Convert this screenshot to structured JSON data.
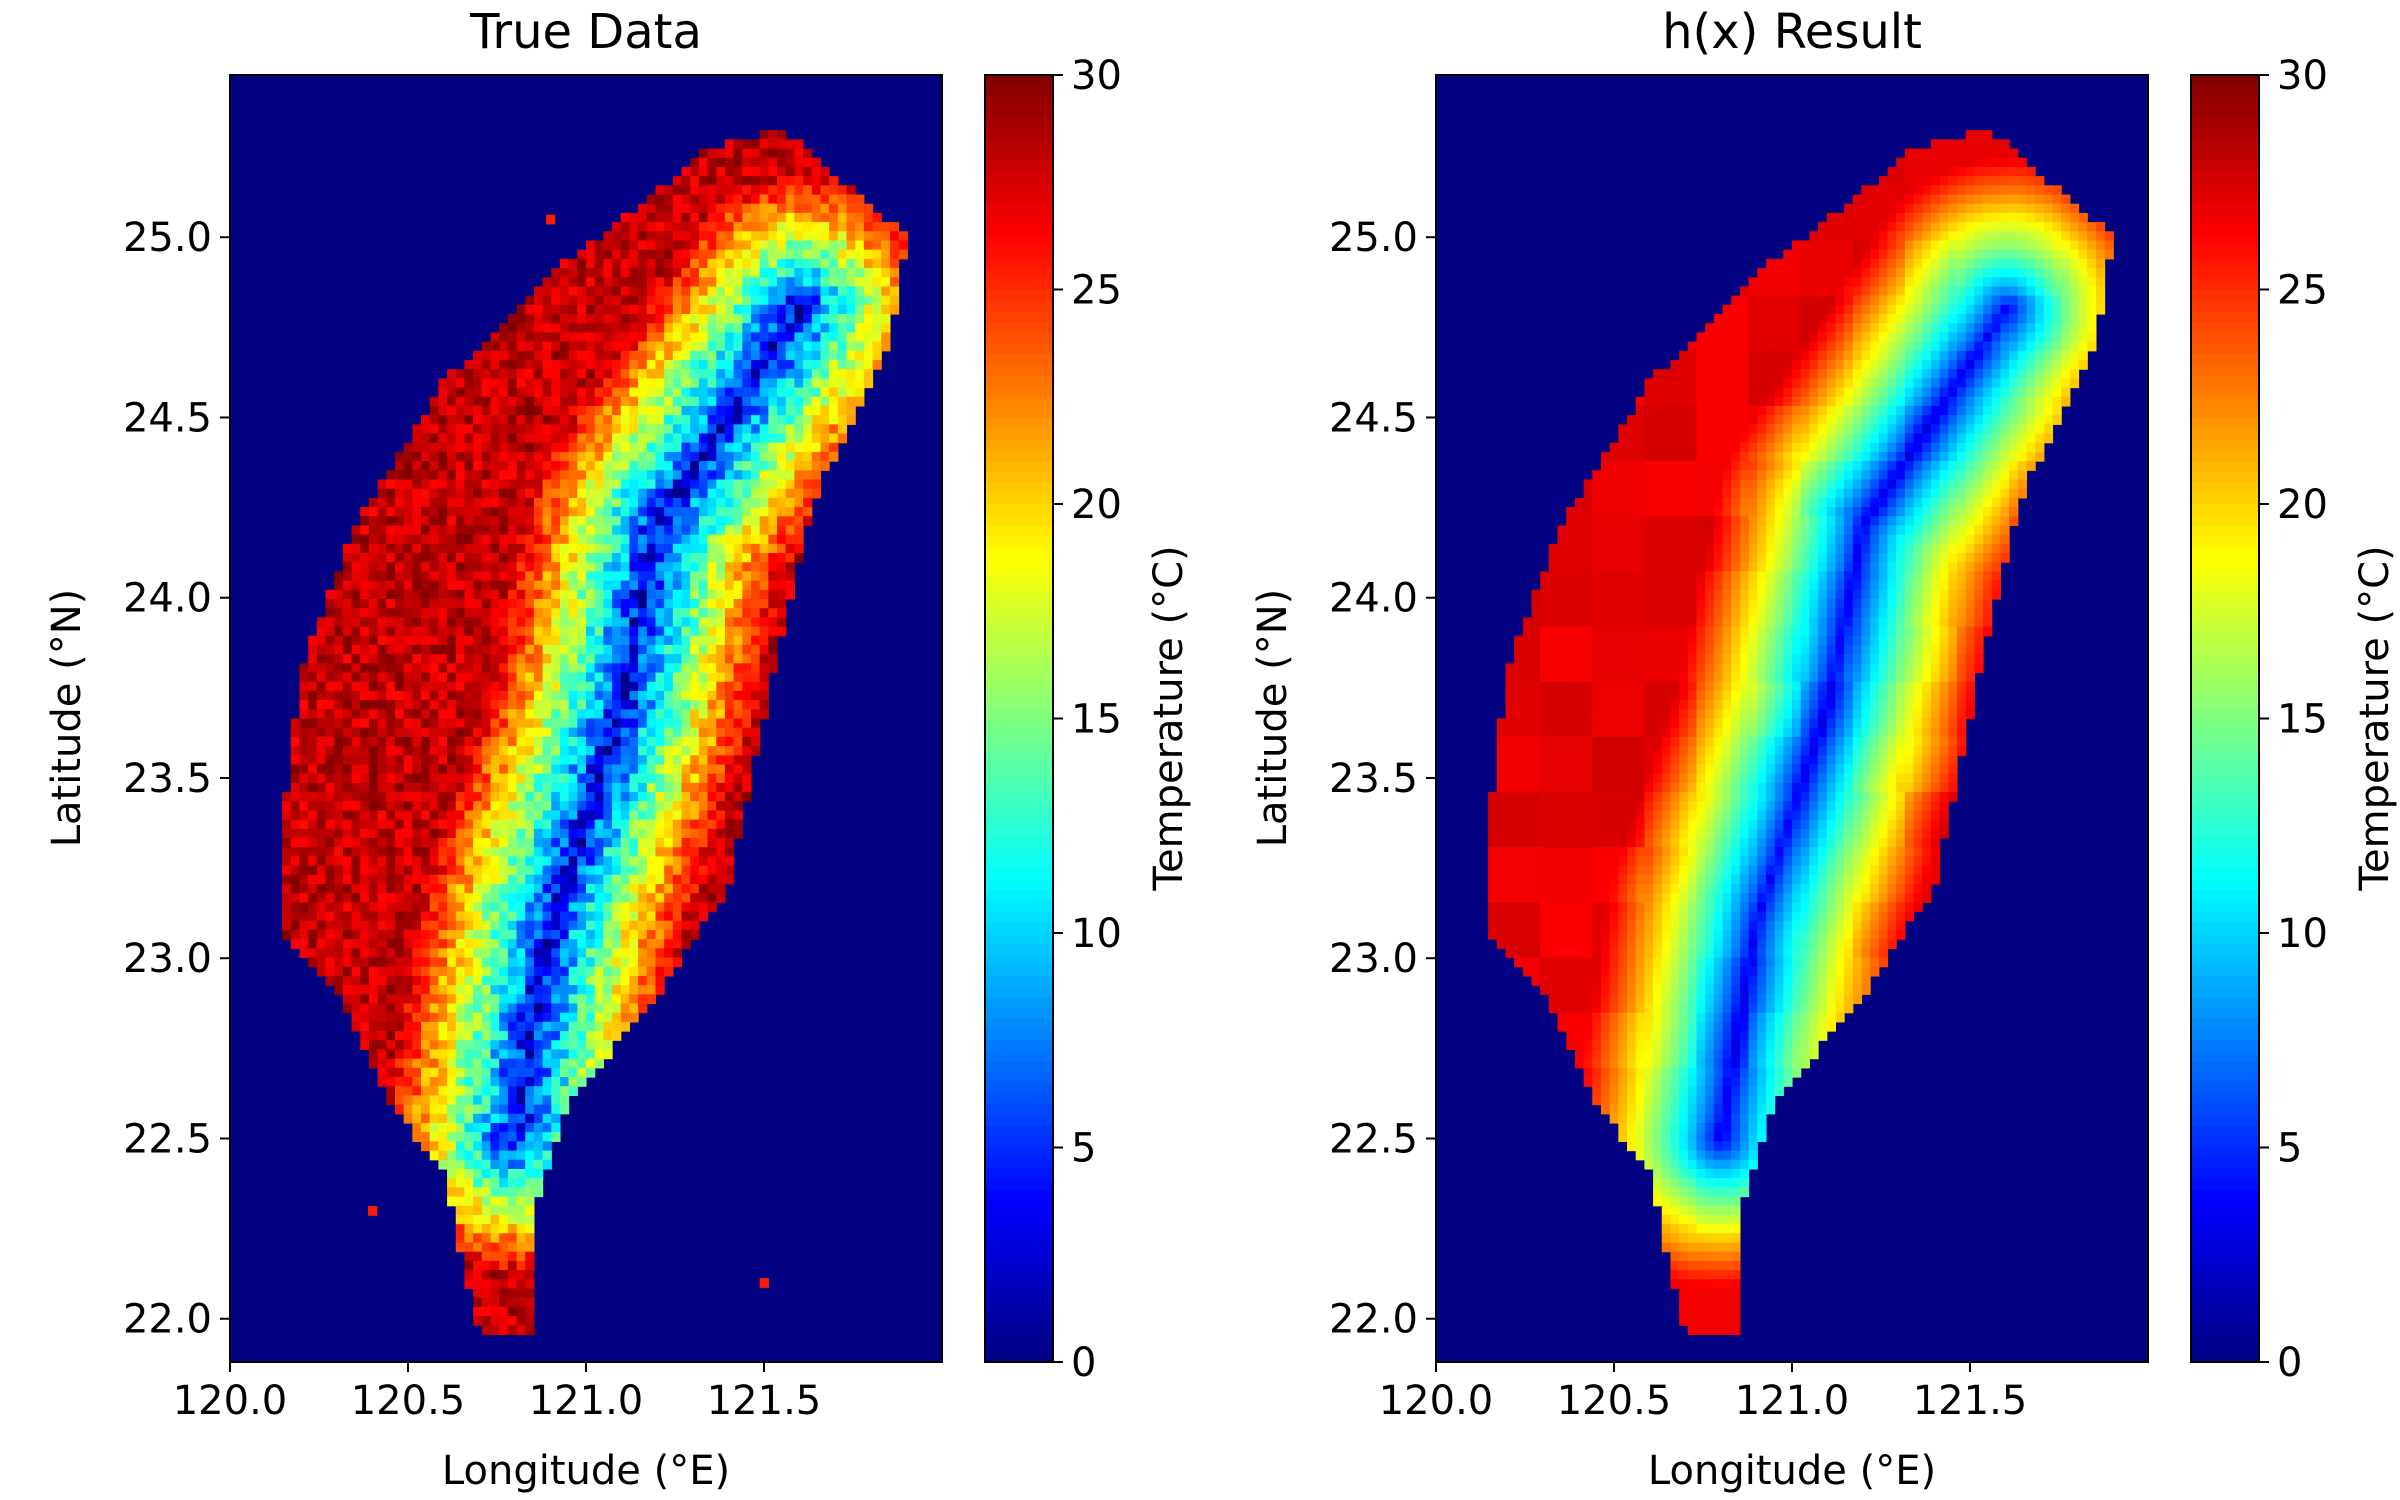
{
  "figure": {
    "background": "#ffffff",
    "ocean_color": "#000080",
    "colormap": "jet"
  },
  "chart_data": [
    {
      "type": "heatmap",
      "title": "True Data",
      "xlabel": "Longitude (°E)",
      "ylabel": "Latitude (°N)",
      "xlim": [
        120.0,
        122.0
      ],
      "ylim": [
        21.88,
        25.45
      ],
      "xticks": [
        120.0,
        120.5,
        121.0,
        121.5
      ],
      "xtick_labels": [
        "120.0",
        "120.5",
        "121.0",
        "121.5"
      ],
      "yticks": [
        22.0,
        22.5,
        23.0,
        23.5,
        24.0,
        24.5,
        25.0
      ],
      "ytick_labels": [
        "22.0",
        "22.5",
        "23.0",
        "23.5",
        "24.0",
        "24.5",
        "25.0"
      ],
      "colorbar": {
        "label": "Temperature (°C)",
        "range": [
          0,
          30
        ],
        "ticks": [
          0,
          5,
          10,
          15,
          20,
          25,
          30
        ],
        "tick_labels": [
          "0",
          "5",
          "10",
          "15",
          "20",
          "25",
          "30"
        ]
      },
      "grid": false,
      "style": "pixelated",
      "island_outline": [
        [
          121.55,
          25.3
        ],
        [
          121.9,
          25.0
        ],
        [
          121.85,
          24.7
        ],
        [
          121.65,
          24.3
        ],
        [
          121.55,
          23.9
        ],
        [
          121.4,
          23.2
        ],
        [
          121.2,
          22.9
        ],
        [
          120.95,
          22.6
        ],
        [
          120.85,
          22.3
        ],
        [
          120.85,
          21.95
        ],
        [
          120.7,
          21.95
        ],
        [
          120.6,
          22.4
        ],
        [
          120.45,
          22.6
        ],
        [
          120.3,
          22.9
        ],
        [
          120.15,
          23.05
        ],
        [
          120.15,
          23.4
        ],
        [
          120.2,
          23.8
        ],
        [
          120.35,
          24.2
        ],
        [
          120.6,
          24.6
        ],
        [
          120.9,
          24.9
        ],
        [
          121.1,
          25.05
        ],
        [
          121.35,
          25.25
        ]
      ],
      "ridge_line": [
        [
          121.6,
          24.8
        ],
        [
          121.2,
          24.2
        ],
        [
          121.1,
          23.7
        ],
        [
          120.9,
          23.1
        ],
        [
          120.8,
          22.5
        ]
      ],
      "range_lat": [
        22.0,
        25.3
      ],
      "range_lon": [
        120.1,
        121.9
      ],
      "ridge_falloff_deg": 0.38,
      "coast_temp": 28,
      "ridge_temp": 2,
      "noise": 4.0,
      "stray_points": [
        [
          120.9,
          25.05
        ],
        [
          121.5,
          22.1
        ],
        [
          120.4,
          22.3
        ]
      ]
    },
    {
      "type": "heatmap",
      "title": "h(x) Result",
      "xlabel": "Longitude (°E)",
      "ylabel": "Latitude (°N)",
      "xlim": [
        120.0,
        122.0
      ],
      "ylim": [
        21.88,
        25.45
      ],
      "xticks": [
        120.0,
        120.5,
        121.0,
        121.5
      ],
      "xtick_labels": [
        "120.0",
        "120.5",
        "121.0",
        "121.5"
      ],
      "yticks": [
        22.0,
        22.5,
        23.0,
        23.5,
        24.0,
        24.5,
        25.0
      ],
      "ytick_labels": [
        "22.0",
        "22.5",
        "23.0",
        "23.5",
        "24.0",
        "24.5",
        "25.0"
      ],
      "colorbar": {
        "label": "Temperature (°C)",
        "range": [
          0,
          30
        ],
        "ticks": [
          0,
          5,
          10,
          15,
          20,
          25,
          30
        ],
        "tick_labels": [
          "0",
          "5",
          "10",
          "15",
          "20",
          "25",
          "30"
        ]
      },
      "grid": false,
      "style": "smooth",
      "island_outline": [
        [
          121.55,
          25.3
        ],
        [
          121.9,
          25.0
        ],
        [
          121.85,
          24.7
        ],
        [
          121.65,
          24.3
        ],
        [
          121.55,
          23.9
        ],
        [
          121.4,
          23.2
        ],
        [
          121.2,
          22.9
        ],
        [
          120.95,
          22.6
        ],
        [
          120.85,
          22.3
        ],
        [
          120.85,
          21.95
        ],
        [
          120.7,
          21.95
        ],
        [
          120.6,
          22.4
        ],
        [
          120.45,
          22.6
        ],
        [
          120.3,
          22.9
        ],
        [
          120.15,
          23.05
        ],
        [
          120.15,
          23.4
        ],
        [
          120.2,
          23.8
        ],
        [
          120.35,
          24.2
        ],
        [
          120.6,
          24.6
        ],
        [
          120.9,
          24.9
        ],
        [
          121.1,
          25.05
        ],
        [
          121.35,
          25.25
        ]
      ],
      "ridge_line": [
        [
          121.6,
          24.8
        ],
        [
          121.2,
          24.2
        ],
        [
          121.1,
          23.7
        ],
        [
          120.9,
          23.1
        ],
        [
          120.8,
          22.5
        ]
      ],
      "range_lat": [
        22.0,
        25.3
      ],
      "range_lon": [
        120.1,
        121.9
      ],
      "ridge_falloff_deg": 0.42,
      "coast_temp": 27,
      "ridge_temp": 3,
      "noise": 0.6,
      "stray_points": []
    }
  ]
}
